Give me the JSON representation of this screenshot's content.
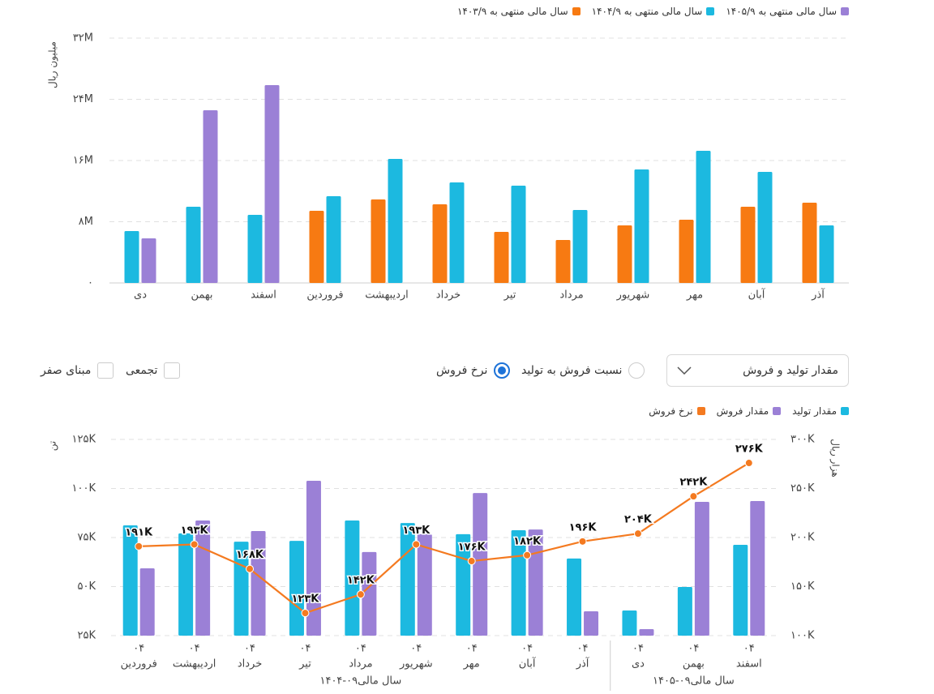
{
  "chart_data": [
    {
      "type": "bar",
      "y_label": "میلیون ریال",
      "categories": [
        "دی",
        "بهمن",
        "اسفند",
        "فروردین",
        "اردیبهشت",
        "خرداد",
        "تیر",
        "مرداد",
        "شهریور",
        "مهر",
        "آبان",
        "آذر"
      ],
      "series": [
        {
          "name": "سال مالی منتهی به ۱۴۰۳/۹",
          "color": "#f77a12",
          "values": [
            null,
            null,
            null,
            9430000,
            10910000,
            10280000,
            6680000,
            5620000,
            7520000,
            8260000,
            9960000,
            10490000
          ]
        },
        {
          "name": "سال مالی منتهی به ۱۴۰۴/۹",
          "color": "#1cb9e0",
          "values": [
            6780000,
            9960000,
            8900000,
            11340000,
            16210000,
            13140000,
            12720000,
            9540000,
            14830000,
            17270000,
            14520000,
            7520000
          ]
        },
        {
          "name": "سال مالی منتهی به ۱۴۰۵/۹",
          "color": "#9b80d6",
          "values": [
            5830000,
            22570000,
            25850000,
            null,
            null,
            null,
            null,
            null,
            null,
            null,
            null,
            null
          ]
        }
      ],
      "ylim": [
        0,
        32000000
      ],
      "yticks": [
        {
          "value": 0,
          "label": "۰"
        },
        {
          "value": 8000000,
          "label": "۸M"
        },
        {
          "value": 16000000,
          "label": "۱۶M"
        },
        {
          "value": 24000000,
          "label": "۲۴M"
        },
        {
          "value": 32000000,
          "label": "۳۲M"
        }
      ],
      "grid": true
    },
    {
      "type": "combo",
      "y_label": "تن",
      "y2_label": "هزار ریال",
      "groups": [
        {
          "label": "سال مالی۰۹-۱۴۰۴",
          "categories": [
            [
              "۰۴",
              "فروردین"
            ],
            [
              "۰۴",
              "اردیبهشت"
            ],
            [
              "۰۴",
              "خرداد"
            ],
            [
              "۰۴",
              "تیر"
            ],
            [
              "۰۴",
              "مرداد"
            ],
            [
              "۰۴",
              "شهریور"
            ],
            [
              "۰۴",
              "مهر"
            ],
            [
              "۰۴",
              "آبان"
            ],
            [
              "۰۴",
              "آذر"
            ]
          ]
        },
        {
          "label": "سال مالی۰۹-۱۴۰۵",
          "categories": [
            [
              "۰۴",
              "دی"
            ],
            [
              "۰۴",
              "بهمن"
            ],
            [
              "۰۴",
              "اسفند"
            ]
          ]
        }
      ],
      "series": [
        {
          "name": "مقدار تولید",
          "color": "#1cb9e0",
          "values": [
            81200,
            77100,
            72900,
            73300,
            83700,
            82400,
            76700,
            78700,
            64300,
            37800,
            49800,
            71300
          ]
        },
        {
          "name": "مقدار فروش",
          "color": "#9b80d6",
          "values": [
            59300,
            83700,
            78300,
            103900,
            67600,
            76700,
            97700,
            79100,
            37400,
            28300,
            93200,
            93600
          ]
        },
        {
          "name": "نرخ فروش",
          "type": "line",
          "axis": "y2",
          "color": "#f47a20",
          "values": [
            191000,
            193000,
            168000,
            123000,
            142000,
            193000,
            176000,
            182000,
            196000,
            204000,
            242000,
            276000
          ],
          "value_labels": [
            "۱۹۱K",
            "۱۹۳K",
            "۱۶۸K",
            "۱۲۳K",
            "۱۴۲K",
            "۱۹۳K",
            "۱۷۶K",
            "۱۸۲K",
            "۱۹۶K",
            "۲۰۴K",
            "۲۴۲K",
            "۲۷۶K"
          ]
        }
      ],
      "ylim": [
        25000,
        125000
      ],
      "yticks": [
        {
          "value": 25000,
          "label": "۲۵K"
        },
        {
          "value": 50000,
          "label": "۵۰K"
        },
        {
          "value": 75000,
          "label": "۷۵K"
        },
        {
          "value": 100000,
          "label": "۱۰۰K"
        },
        {
          "value": 125000,
          "label": "۱۲۵K"
        }
      ],
      "y2lim": [
        100000,
        300000
      ],
      "y2ticks": [
        {
          "value": 100000,
          "label": "۱۰۰K"
        },
        {
          "value": 150000,
          "label": "۱۵۰K"
        },
        {
          "value": 200000,
          "label": "۲۰۰K"
        },
        {
          "value": 250000,
          "label": "۲۵۰K"
        },
        {
          "value": 300000,
          "label": "۳۰۰K"
        }
      ],
      "grid": true
    }
  ],
  "controls": {
    "dropdown": "مقدار تولید و فروش",
    "radios": [
      {
        "label": "نسبت فروش به تولید",
        "checked": false
      },
      {
        "label": "نرخ فروش",
        "checked": true
      }
    ],
    "checkboxes": [
      {
        "label": "تجمعی",
        "checked": false
      },
      {
        "label": "مبنای صفر",
        "checked": false
      }
    ]
  }
}
